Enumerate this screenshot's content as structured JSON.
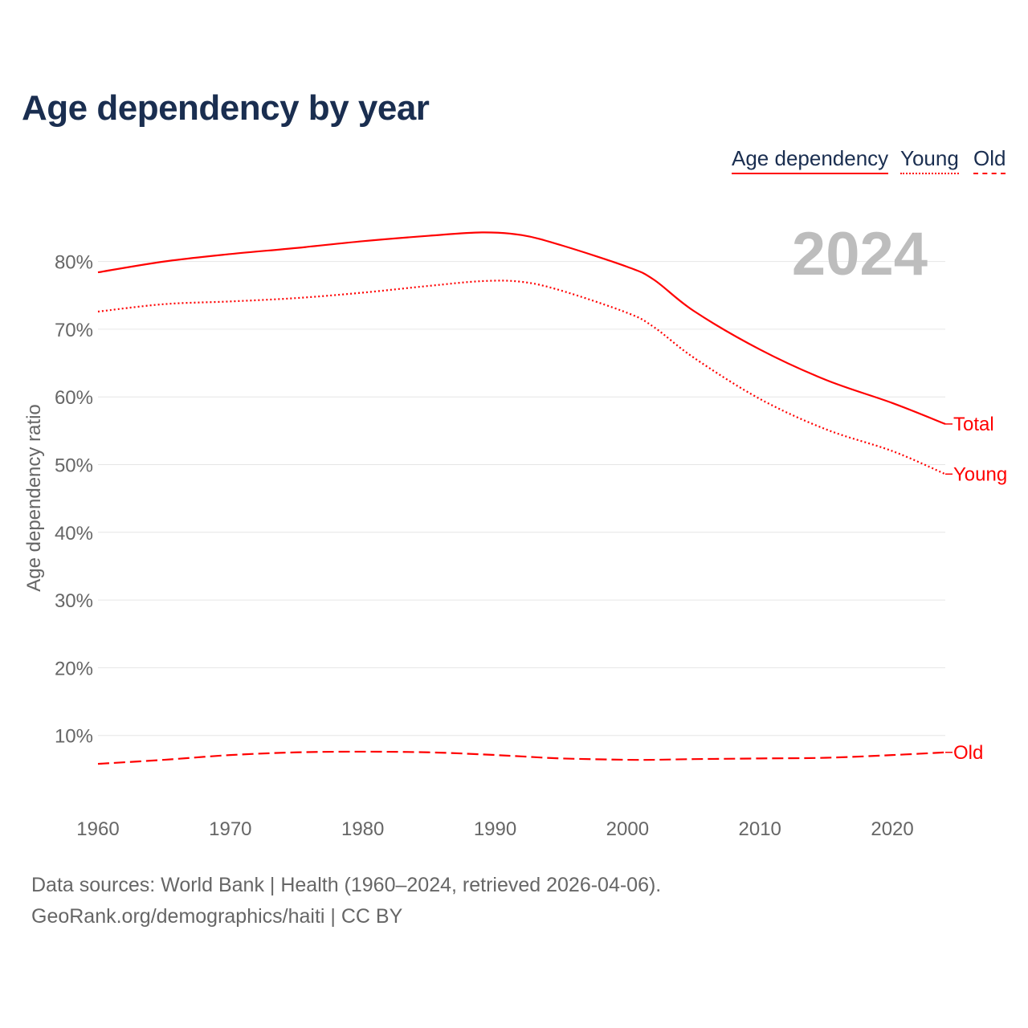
{
  "chart_data": {
    "type": "line",
    "title": "Age dependency by year",
    "xlabel": "",
    "ylabel": "Age dependency ratio",
    "xlim": [
      1960,
      2024
    ],
    "ylim": [
      0,
      85
    ],
    "x_ticks": [
      "1960",
      "1970",
      "1980",
      "1990",
      "2000",
      "2010",
      "2020"
    ],
    "y_ticks": [
      "10%",
      "20%",
      "30%",
      "40%",
      "50%",
      "60%",
      "70%",
      "80%"
    ],
    "grid": true,
    "year_label": "2024",
    "legend": [
      "Age dependency",
      "Young",
      "Old"
    ],
    "legend_position": "top-right",
    "x": [
      1960,
      1965,
      1970,
      1975,
      1980,
      1985,
      1989,
      1992,
      1995,
      2000,
      2002,
      2005,
      2010,
      2015,
      2020,
      2024
    ],
    "series": [
      {
        "name": "Total",
        "legend": "Age dependency",
        "style": "solid",
        "color": "#ff0000",
        "values": [
          78.4,
          80.0,
          81.1,
          82.0,
          83.0,
          83.8,
          84.3,
          83.9,
          82.4,
          79.2,
          77.3,
          72.7,
          67.0,
          62.5,
          59.1,
          56.0
        ]
      },
      {
        "name": "Young",
        "legend": "Young",
        "style": "dotted",
        "color": "#ff0000",
        "values": [
          72.6,
          73.7,
          74.1,
          74.6,
          75.4,
          76.4,
          77.1,
          77.0,
          75.7,
          72.4,
          70.3,
          65.8,
          59.7,
          55.2,
          52.0,
          48.6
        ]
      },
      {
        "name": "Old",
        "legend": "Old",
        "style": "dashed",
        "color": "#ff0000",
        "values": [
          5.8,
          6.4,
          7.1,
          7.5,
          7.6,
          7.5,
          7.2,
          6.9,
          6.6,
          6.4,
          6.4,
          6.5,
          6.6,
          6.7,
          7.1,
          7.5
        ]
      }
    ]
  },
  "footer": {
    "line1": "Data sources: World Bank | Health (1960–2024, retrieved 2026-04-06).",
    "line2": "GeoRank.org/demographics/haiti | CC BY"
  }
}
